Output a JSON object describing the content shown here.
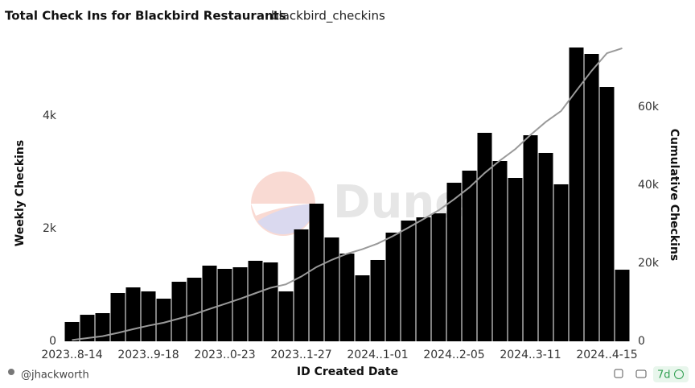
{
  "chart_data": {
    "type": "bar",
    "title": "Total Check Ins for Blackbird Restaurants",
    "subtitle": "blackbird_checkins",
    "watermark": "Dune",
    "author": "@jhackworth",
    "refresh": "7d",
    "xlabel": "ID Created Date",
    "ylabel": "Weekly Checkins",
    "y2label": "Cumulative Checkins",
    "categories": [
      "2023..8-14",
      null,
      null,
      null,
      null,
      "2023..9-18",
      null,
      null,
      null,
      null,
      "2023..0-23",
      null,
      null,
      null,
      null,
      "2023..1-27",
      null,
      null,
      null,
      null,
      "2024..1-01",
      null,
      null,
      null,
      null,
      "2024..2-05",
      null,
      null,
      null,
      null,
      "2024..3-11",
      null,
      null,
      null,
      null,
      "2024..4-15",
      null
    ],
    "series": [
      {
        "name": "Weekly Checkins",
        "type": "bar",
        "color": "#000000",
        "values": [
          343,
          471,
          500,
          857,
          957,
          886,
          757,
          1057,
          1129,
          1343,
          1286,
          1314,
          1429,
          1400,
          886,
          1986,
          2443,
          1843,
          1557,
          1171,
          1443,
          1929,
          2143,
          2200,
          2271,
          2814,
          3029,
          3700,
          3200,
          2900,
          3657,
          3343,
          2786,
          5214,
          5100,
          4514,
          1271
        ]
      },
      {
        "name": "Cumulative Checkins",
        "type": "line",
        "axis": "y2",
        "color": "#9a9a9a",
        "values": [
          343,
          814,
          1314,
          2171,
          3128,
          4014,
          4771,
          5828,
          6957,
          8300,
          9586,
          10900,
          12329,
          13729,
          14615,
          16601,
          19044,
          20887,
          22444,
          23615,
          25058,
          26987,
          29130,
          31330,
          33601,
          36415,
          39444,
          43144,
          46344,
          49244,
          52901,
          56244,
          59030,
          64244,
          69344,
          73858,
          75129
        ]
      }
    ],
    "ylim": [
      0,
      5400
    ],
    "yticks": [
      0,
      {
        "value": 2000,
        "label": "2k"
      },
      {
        "value": 4000,
        "label": "4k"
      }
    ],
    "y2lim": [
      0,
      78000
    ],
    "y2ticks": [
      0,
      {
        "value": 20000,
        "label": "20k"
      },
      {
        "value": 40000,
        "label": "40k"
      },
      {
        "value": 60000,
        "label": "60k"
      }
    ],
    "grid": false
  }
}
